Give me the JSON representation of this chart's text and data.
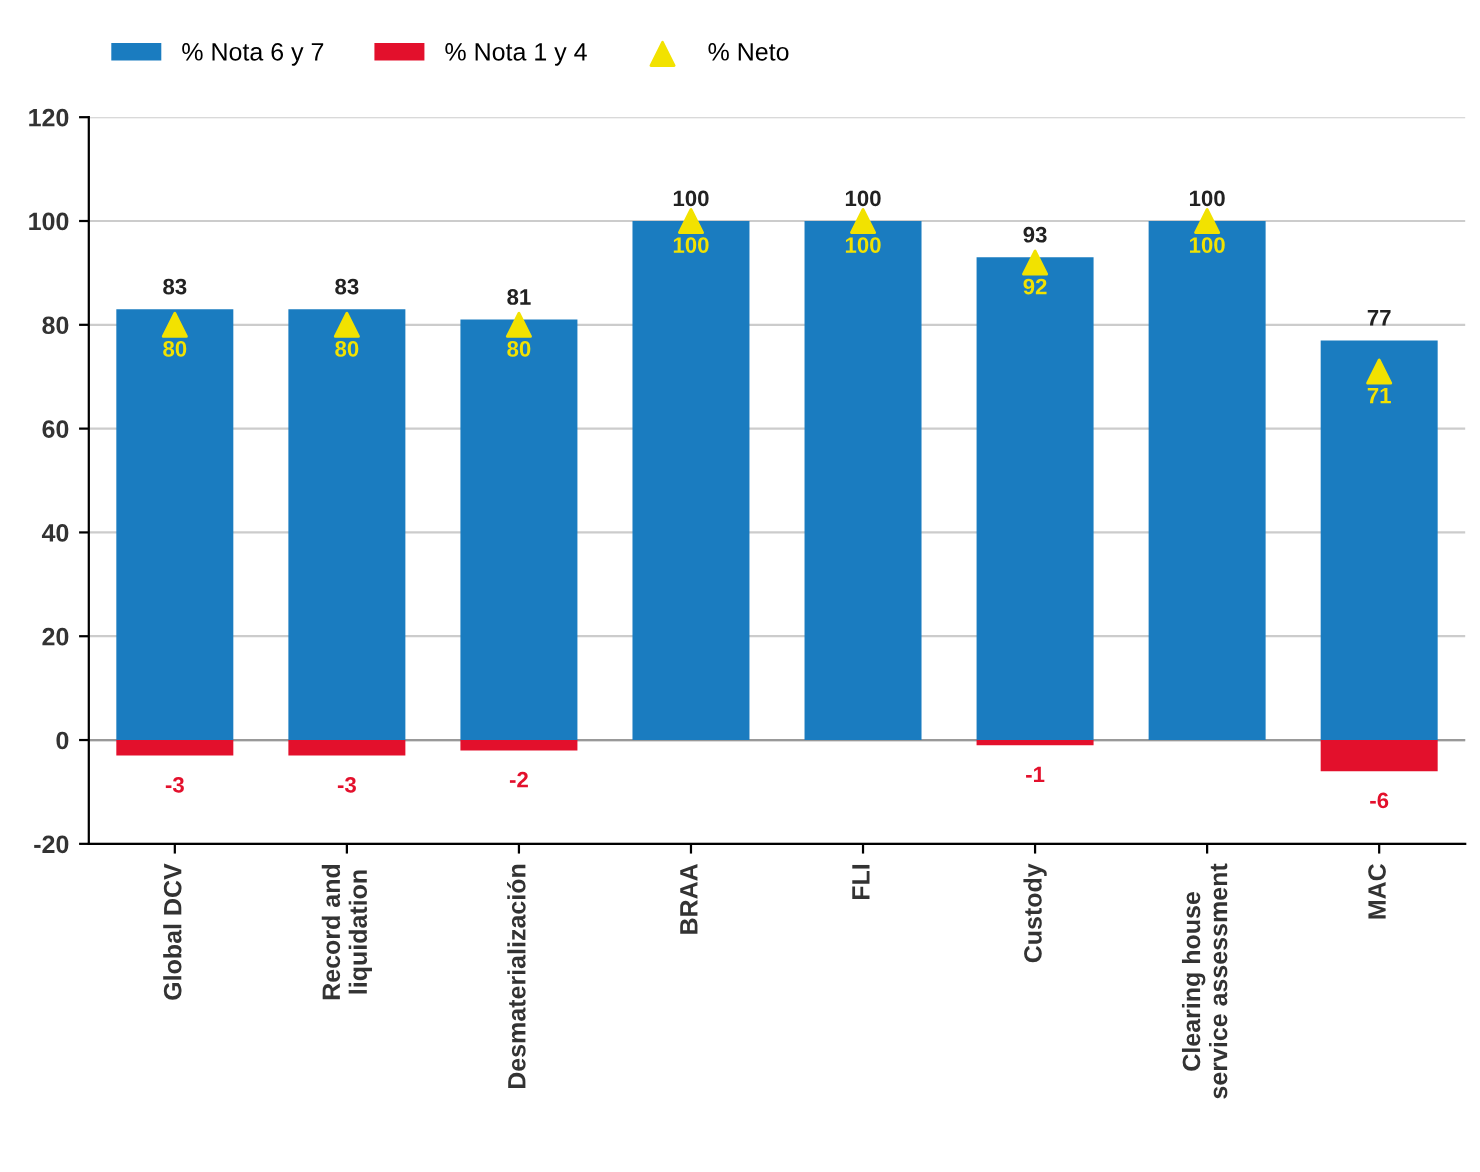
{
  "chart_data": {
    "type": "bar",
    "stacked": true,
    "categories": [
      "Global DCV",
      "Record and liquidation",
      "Desmaterialización",
      "BRAA",
      "FLI",
      "Custody",
      "Clearing house service assessment",
      "MAC"
    ],
    "series": [
      {
        "name": "% Nota 6 y 7",
        "color": "#1a7cc0",
        "values": [
          83,
          83,
          81,
          100,
          100,
          93,
          100,
          77
        ],
        "value_labels": [
          "83",
          "83",
          "81",
          "100",
          "100",
          "93",
          "100",
          "77"
        ]
      },
      {
        "name": "% Nota 1 y 4",
        "color": "#e3102c",
        "values": [
          -3,
          -3,
          -2,
          0,
          0,
          -1,
          0,
          -6
        ],
        "value_labels": [
          "-3",
          "-3",
          "-2",
          null,
          null,
          "-1",
          null,
          "-6"
        ]
      },
      {
        "name": "% Neto",
        "type": "scatter",
        "marker": "triangle",
        "color": "#f2e200",
        "values": [
          80,
          80,
          80,
          100,
          100,
          92,
          100,
          71
        ],
        "value_labels": [
          "80",
          "80",
          "80",
          "100",
          "100",
          "92",
          "100",
          "71"
        ]
      }
    ],
    "ylim": [
      -20,
      120
    ],
    "yticks": [
      -20,
      0,
      20,
      40,
      60,
      80,
      100,
      120
    ],
    "grid": "y",
    "legend": "top left"
  }
}
